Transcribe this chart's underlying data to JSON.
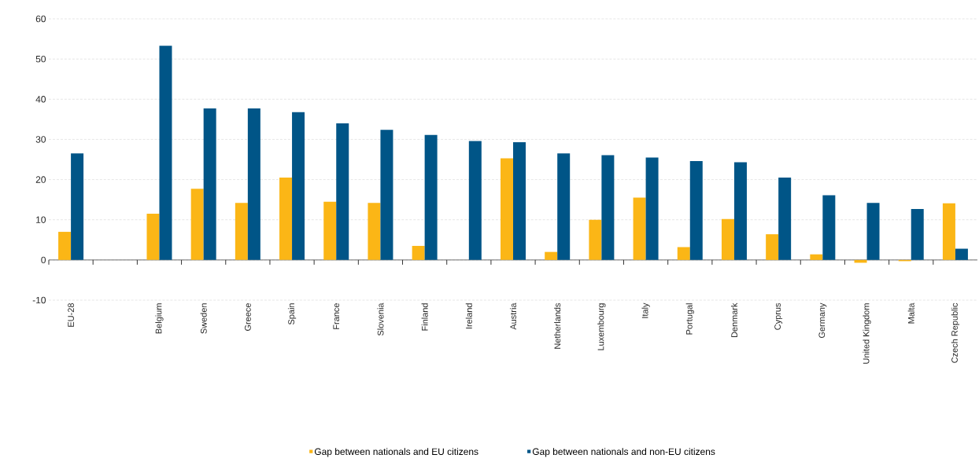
{
  "chart_data": {
    "type": "bar",
    "categories": [
      "EU-28",
      null,
      "Belgium",
      "Sweden",
      "Greece",
      "Spain",
      "France",
      "Slovenia",
      "Finland",
      "Ireland",
      "Austria",
      "Netherlands",
      "Luxembourg",
      "Italy",
      "Portugal",
      "Denmark",
      "Cyprus",
      "Germany",
      "United Kingdom",
      "Malta",
      "Czech Republic"
    ],
    "series": [
      {
        "name": "Gap between nationals and EU citizens",
        "color": "#fbb616",
        "values": [
          7,
          null,
          11.5,
          17.7,
          14.2,
          20.5,
          14.5,
          14.2,
          3.5,
          null,
          25.3,
          2,
          10,
          15.5,
          3.2,
          10.2,
          6.4,
          1.4,
          -0.7,
          -0.3,
          14.1
        ]
      },
      {
        "name": "Gap between nationals and non-EU citizens",
        "color": "#005587",
        "values": [
          26.5,
          null,
          53.3,
          37.7,
          37.7,
          36.8,
          34,
          32.4,
          31.1,
          29.6,
          29.3,
          26.5,
          26.1,
          25.5,
          24.6,
          24.3,
          20.5,
          16.1,
          14.2,
          12.7,
          2.8
        ]
      }
    ],
    "ylim": [
      -10,
      60
    ],
    "yticks": [
      -10,
      0,
      10,
      20,
      30,
      40,
      50,
      60
    ],
    "grid": "y",
    "legend": "bottom"
  }
}
